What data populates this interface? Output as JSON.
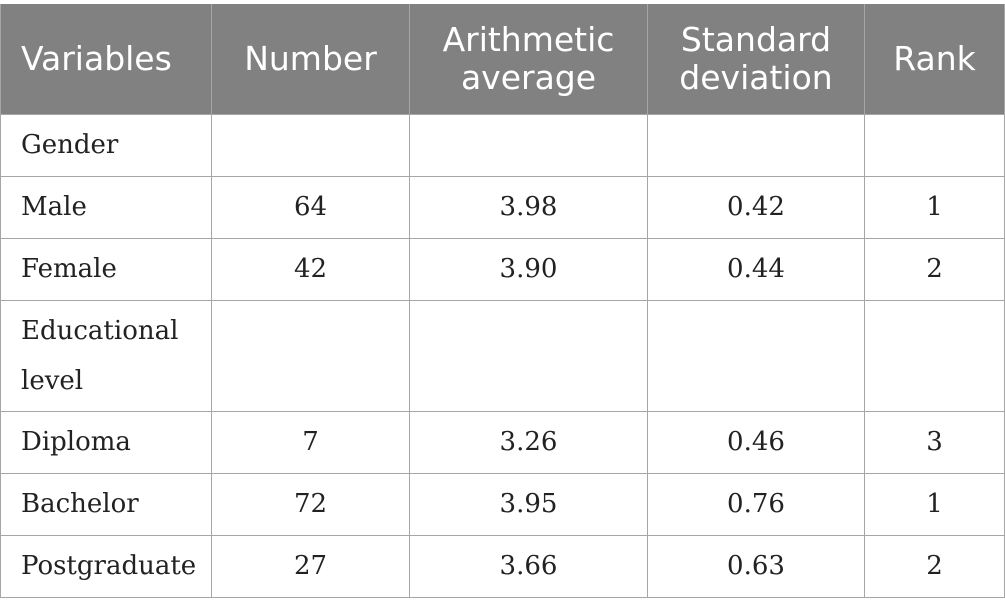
{
  "table": {
    "headers": {
      "variables": "Variables",
      "number": "Number",
      "arithmetic_average": "Arithmetic average",
      "standard_deviation": "Standard deviation",
      "rank": "Rank"
    },
    "rows": [
      {
        "variable": "Gender",
        "number": "",
        "average": "",
        "sd": "",
        "rank": ""
      },
      {
        "variable": "Male",
        "number": "64",
        "average": "3.98",
        "sd": "0.42",
        "rank": "1"
      },
      {
        "variable": "Female",
        "number": "42",
        "average": "3.90",
        "sd": "0.44",
        "rank": "2"
      },
      {
        "variable": "Educational level",
        "number": "",
        "average": "",
        "sd": "",
        "rank": ""
      },
      {
        "variable": "Diploma",
        "number": "7",
        "average": "3.26",
        "sd": "0.46",
        "rank": "3"
      },
      {
        "variable": "Bachelor",
        "number": "72",
        "average": "3.95",
        "sd": "0.76",
        "rank": "1"
      },
      {
        "variable": "Postgraduate",
        "number": "27",
        "average": "3.66",
        "sd": "0.63",
        "rank": "2"
      }
    ]
  }
}
